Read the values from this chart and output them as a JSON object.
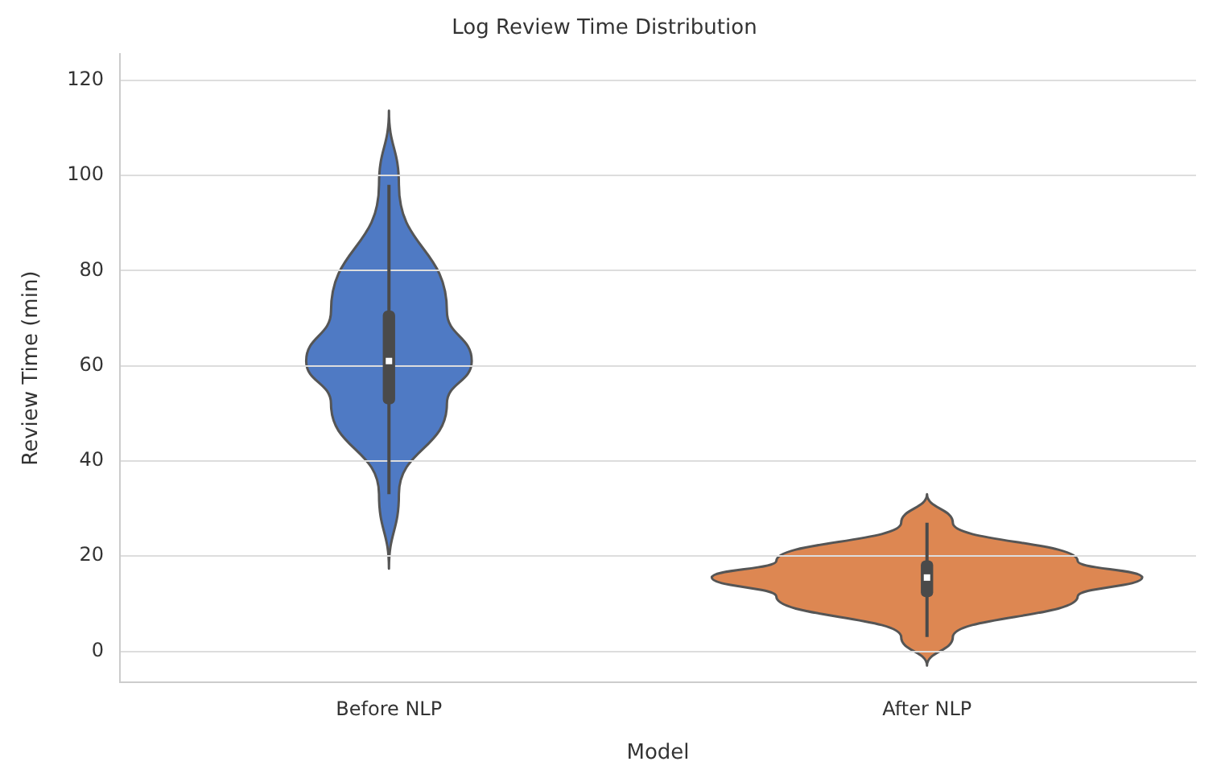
{
  "chart_data": {
    "type": "box",
    "title": "Log Review Time Distribution",
    "xlabel": "Model",
    "ylabel": "Review Time (min)",
    "categories": [
      "Before NLP",
      "After NLP"
    ],
    "colors": [
      "#4f7ac4",
      "#dd8752"
    ],
    "series": [
      {
        "color": "#4a4a4a",
        "boxes": [
          {
            "low": 33,
            "q1": 52,
            "median": 61,
            "q3": 71.5,
            "high": 98
          },
          {
            "low": 3,
            "q1": 11.5,
            "median": 15.5,
            "q3": 19,
            "high": 27
          }
        ]
      }
    ],
    "ylim": [
      -6.5,
      125.5
    ],
    "yticks": [
      0,
      20,
      40,
      60,
      80,
      100,
      120
    ],
    "grid": "y",
    "legend": false
  }
}
